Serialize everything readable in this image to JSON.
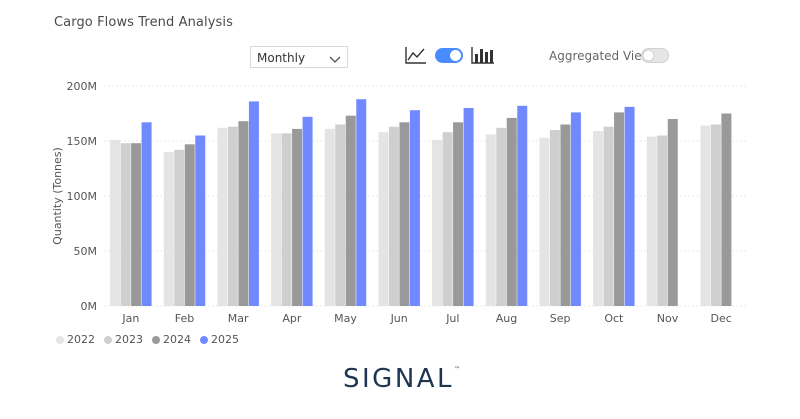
{
  "title": "Cargo Flows Trend Analysis",
  "controls": {
    "period_value": "Monthly",
    "aggregated_label": "Aggregated View",
    "aggregated_on": false,
    "chart_type_toggle_on": true
  },
  "logo": {
    "text": "SIGNAL",
    "tm": "™"
  },
  "colors": {
    "2022": "#e4e4e4",
    "2023": "#cfcfcf",
    "2024": "#999999",
    "2025": "#7189ff",
    "accent": "#4a8cff",
    "logo": "#1e3551"
  },
  "chart_data": {
    "type": "bar",
    "title": "Cargo Flows Trend Analysis",
    "xlabel": "",
    "ylabel": "Quantity (Tonnes)",
    "ylim": [
      0,
      200
    ],
    "yticks": [
      0,
      50,
      100,
      150,
      200
    ],
    "ytick_labels": [
      "0M",
      "50M",
      "100M",
      "150M",
      "200M"
    ],
    "grid": true,
    "legend_position": "bottom-left",
    "categories": [
      "Jan",
      "Feb",
      "Mar",
      "Apr",
      "May",
      "Jun",
      "Jul",
      "Aug",
      "Sep",
      "Oct",
      "Nov",
      "Dec"
    ],
    "series": [
      {
        "name": "2022",
        "values": [
          151,
          140,
          162,
          157,
          161,
          158,
          151,
          156,
          153,
          159,
          154,
          164
        ]
      },
      {
        "name": "2023",
        "values": [
          148,
          142,
          163,
          157,
          165,
          163,
          158,
          162,
          160,
          163,
          155,
          165
        ]
      },
      {
        "name": "2024",
        "values": [
          148,
          147,
          168,
          161,
          173,
          167,
          167,
          171,
          165,
          176,
          170,
          175
        ]
      },
      {
        "name": "2025",
        "values": [
          167,
          155,
          186,
          172,
          188,
          178,
          180,
          182,
          176,
          181,
          null,
          null
        ]
      }
    ]
  }
}
